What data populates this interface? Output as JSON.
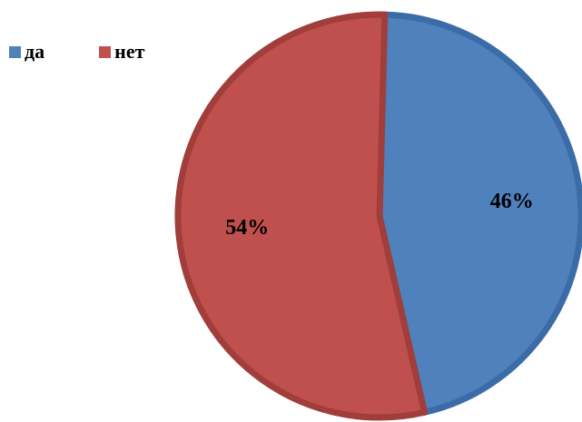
{
  "chart_data": {
    "type": "pie",
    "title": "",
    "legend_position": "top-left",
    "categories": [
      "да",
      "нет"
    ],
    "values": [
      46,
      54
    ],
    "data_labels": [
      "46%",
      "54%"
    ],
    "colors": [
      "#4f81bd",
      "#c0504d"
    ],
    "edge_colors": [
      "#3c6ca8",
      "#a13e3b"
    ]
  }
}
